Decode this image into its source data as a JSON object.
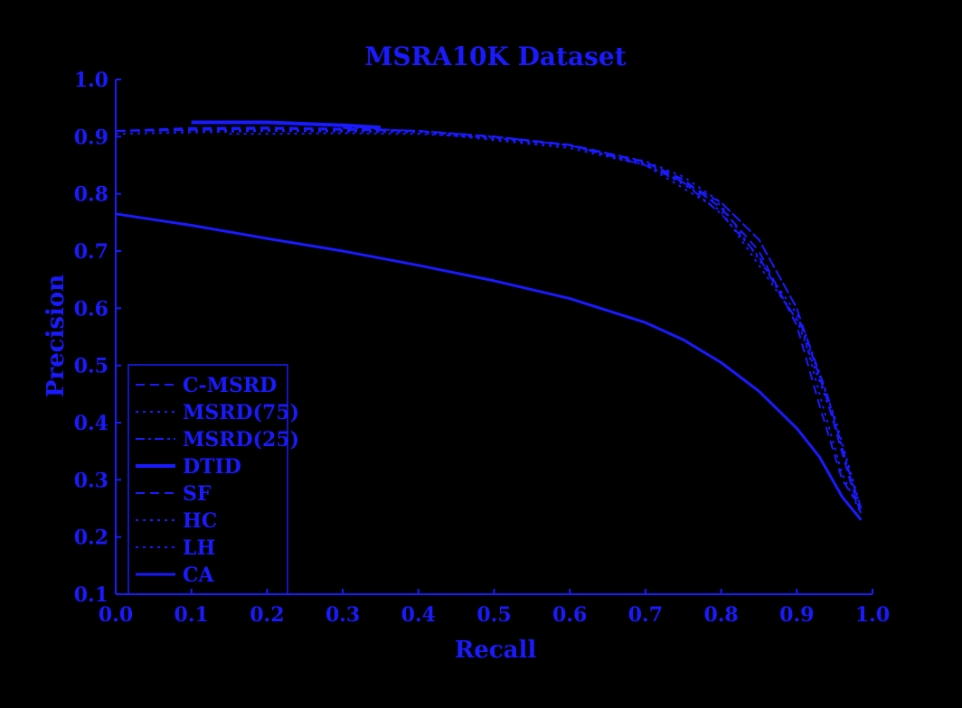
{
  "chart_data": {
    "type": "line",
    "title": "MSRA10K Dataset",
    "xlabel": "Recall",
    "ylabel": "Precision",
    "xlim": [
      0.0,
      1.0
    ],
    "ylim": [
      0.1,
      1.0
    ],
    "x_ticks": [
      "0.0",
      "0.1",
      "0.2",
      "0.3",
      "0.4",
      "0.5",
      "0.6",
      "0.7",
      "0.8",
      "0.9",
      "1.0"
    ],
    "y_ticks": [
      "0.1",
      "0.2",
      "0.3",
      "0.4",
      "0.5",
      "0.6",
      "0.7",
      "0.8",
      "0.9",
      "1.0"
    ],
    "grid": false,
    "legend_placement": "lower-left",
    "colors": {
      "series": "#1a1aff",
      "background": "#000000"
    },
    "series": [
      {
        "name": "C-MSRD",
        "style": "dashed",
        "width": 2,
        "points": [
          [
            0.0,
            0.91
          ],
          [
            0.1,
            0.915
          ],
          [
            0.2,
            0.916
          ],
          [
            0.3,
            0.914
          ],
          [
            0.4,
            0.91
          ],
          [
            0.5,
            0.9
          ],
          [
            0.6,
            0.885
          ],
          [
            0.7,
            0.855
          ],
          [
            0.75,
            0.825
          ],
          [
            0.8,
            0.775
          ],
          [
            0.85,
            0.7
          ],
          [
            0.9,
            0.57
          ],
          [
            0.93,
            0.43
          ],
          [
            0.96,
            0.3
          ],
          [
            0.985,
            0.25
          ]
        ]
      },
      {
        "name": "MSRD(75)",
        "style": "dotted",
        "width": 2,
        "points": [
          [
            0.15,
            0.905
          ],
          [
            0.2,
            0.905
          ],
          [
            0.3,
            0.906
          ],
          [
            0.4,
            0.905
          ],
          [
            0.5,
            0.898
          ],
          [
            0.6,
            0.885
          ],
          [
            0.7,
            0.857
          ],
          [
            0.75,
            0.83
          ],
          [
            0.8,
            0.785
          ],
          [
            0.85,
            0.72
          ],
          [
            0.9,
            0.6
          ],
          [
            0.93,
            0.45
          ],
          [
            0.96,
            0.31
          ],
          [
            0.985,
            0.24
          ]
        ]
      },
      {
        "name": "MSRD(25)",
        "style": "dashdot",
        "width": 2,
        "points": [
          [
            0.3,
            0.915
          ],
          [
            0.4,
            0.91
          ],
          [
            0.5,
            0.9
          ],
          [
            0.6,
            0.885
          ],
          [
            0.7,
            0.85
          ],
          [
            0.75,
            0.82
          ],
          [
            0.8,
            0.765
          ],
          [
            0.85,
            0.69
          ],
          [
            0.88,
            0.62
          ],
          [
            0.91,
            0.56
          ],
          [
            0.94,
            0.45
          ],
          [
            0.97,
            0.31
          ],
          [
            0.985,
            0.25
          ]
        ]
      },
      {
        "name": "DTID",
        "style": "solid",
        "width": 4,
        "points": [
          [
            0.1,
            0.925
          ],
          [
            0.2,
            0.925
          ],
          [
            0.3,
            0.92
          ],
          [
            0.35,
            0.916
          ]
        ]
      },
      {
        "name": "SF",
        "style": "dashed",
        "width": 2,
        "points": [
          [
            0.0,
            0.91
          ],
          [
            0.2,
            0.914
          ],
          [
            0.4,
            0.91
          ],
          [
            0.5,
            0.9
          ],
          [
            0.6,
            0.886
          ],
          [
            0.7,
            0.856
          ],
          [
            0.8,
            0.785
          ],
          [
            0.85,
            0.72
          ],
          [
            0.9,
            0.6
          ],
          [
            0.94,
            0.44
          ],
          [
            0.97,
            0.3
          ],
          [
            0.985,
            0.24
          ]
        ]
      },
      {
        "name": "HC",
        "style": "dotted",
        "width": 2,
        "points": [
          [
            0.0,
            0.905
          ],
          [
            0.2,
            0.91
          ],
          [
            0.4,
            0.908
          ],
          [
            0.6,
            0.88
          ],
          [
            0.7,
            0.85
          ],
          [
            0.8,
            0.77
          ],
          [
            0.9,
            0.58
          ],
          [
            0.95,
            0.4
          ],
          [
            0.985,
            0.24
          ]
        ]
      },
      {
        "name": "LH",
        "style": "dotted",
        "width": 2,
        "points": [
          [
            0.0,
            0.91
          ],
          [
            0.2,
            0.912
          ],
          [
            0.4,
            0.909
          ],
          [
            0.6,
            0.884
          ],
          [
            0.7,
            0.853
          ],
          [
            0.8,
            0.78
          ],
          [
            0.9,
            0.59
          ],
          [
            0.95,
            0.41
          ],
          [
            0.985,
            0.25
          ]
        ]
      },
      {
        "name": "CA",
        "style": "solid",
        "width": 3,
        "points": [
          [
            0.0,
            0.765
          ],
          [
            0.05,
            0.755
          ],
          [
            0.1,
            0.745
          ],
          [
            0.2,
            0.722
          ],
          [
            0.3,
            0.7
          ],
          [
            0.4,
            0.675
          ],
          [
            0.5,
            0.648
          ],
          [
            0.6,
            0.617
          ],
          [
            0.7,
            0.575
          ],
          [
            0.75,
            0.545
          ],
          [
            0.8,
            0.505
          ],
          [
            0.85,
            0.455
          ],
          [
            0.9,
            0.39
          ],
          [
            0.93,
            0.34
          ],
          [
            0.96,
            0.27
          ],
          [
            0.985,
            0.23
          ]
        ]
      }
    ]
  }
}
